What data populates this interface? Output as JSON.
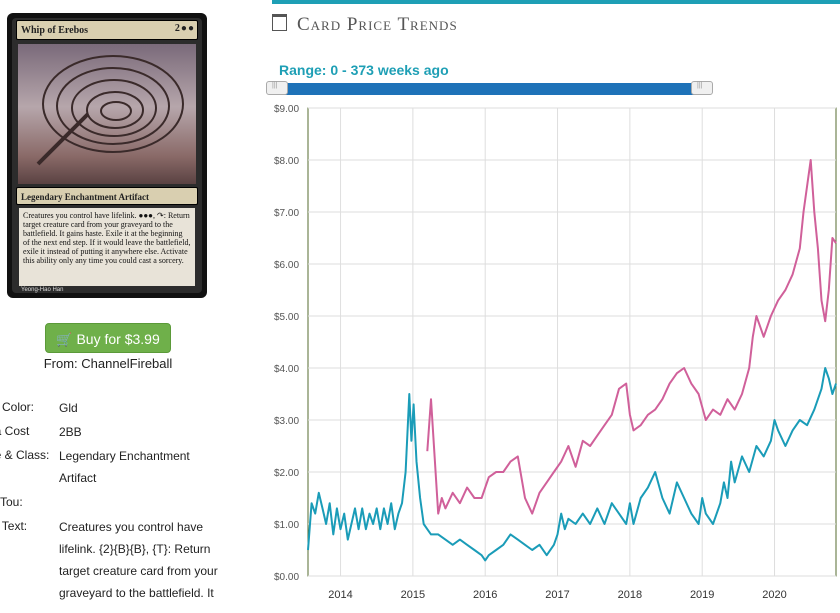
{
  "card": {
    "name": "Whip of Erebos",
    "mana": "2●●",
    "type_line": "Legendary Enchantment Artifact",
    "rules_text": "Creatures you control have lifelink. ●●●, ↷: Return target creature card from your graveyard to the battlefield. It gains haste. Exile it at the beginning of the next end step. If it would leave the battlefield, exile it instead of putting it anywhere else. Activate this ability only any time you could cast a sorcery.",
    "artist": "Yeong-Hao Han"
  },
  "buy": {
    "label": "Buy for $3.99",
    "from": "From: ChannelFireball",
    "icon": "shopping-cart-icon",
    "color": "#6fb04a"
  },
  "details": [
    {
      "label": "rd Color:",
      "value": "Gld"
    },
    {
      "label": "na Cost",
      "value": "2BB"
    },
    {
      "label": "pe & Class:",
      "value": "Legendary Enchantment Artifact"
    },
    {
      "label": "w/Tou:",
      "value": ""
    },
    {
      "label": "rd Text:",
      "value": "Creatures you control have lifelink. {2}{B}{B}, {T}: Return target creature card from your graveyard to the battlefield. It"
    }
  ],
  "trends": {
    "title": "Card Price Trends",
    "icon": "calendar-icon",
    "range_label": "Range: 0 - 373 weeks ago",
    "accent": "#1e9fb5"
  },
  "chart_data": {
    "type": "line",
    "ylim": [
      0,
      9
    ],
    "xlim": [
      2013.6,
      2020.9
    ],
    "yticks": [
      "$0.00",
      "$1.00",
      "$2.00",
      "$3.00",
      "$4.00",
      "$5.00",
      "$6.00",
      "$7.00",
      "$8.00",
      "$9.00"
    ],
    "xticks": [
      "2014",
      "2015",
      "2016",
      "2017",
      "2018",
      "2019",
      "2020"
    ],
    "grid": true,
    "series": [
      {
        "color": "#1a9cb8",
        "points": [
          [
            2013.6,
            0.5
          ],
          [
            2013.65,
            1.4
          ],
          [
            2013.7,
            1.2
          ],
          [
            2013.75,
            1.6
          ],
          [
            2013.8,
            1.3
          ],
          [
            2013.85,
            1.0
          ],
          [
            2013.9,
            1.4
          ],
          [
            2013.95,
            0.8
          ],
          [
            2014.0,
            1.3
          ],
          [
            2014.05,
            0.9
          ],
          [
            2014.1,
            1.2
          ],
          [
            2014.15,
            0.7
          ],
          [
            2014.2,
            1.0
          ],
          [
            2014.25,
            1.3
          ],
          [
            2014.3,
            0.9
          ],
          [
            2014.35,
            1.3
          ],
          [
            2014.4,
            0.9
          ],
          [
            2014.45,
            1.2
          ],
          [
            2014.5,
            1.0
          ],
          [
            2014.55,
            1.3
          ],
          [
            2014.6,
            0.9
          ],
          [
            2014.65,
            1.3
          ],
          [
            2014.7,
            1.0
          ],
          [
            2014.75,
            1.4
          ],
          [
            2014.8,
            0.9
          ],
          [
            2014.85,
            1.2
          ],
          [
            2014.9,
            1.4
          ],
          [
            2014.95,
            2.0
          ],
          [
            2015.0,
            3.5
          ],
          [
            2015.03,
            2.6
          ],
          [
            2015.06,
            3.3
          ],
          [
            2015.1,
            2.2
          ],
          [
            2015.15,
            1.5
          ],
          [
            2015.2,
            1.0
          ],
          [
            2015.25,
            0.9
          ],
          [
            2015.3,
            0.8
          ],
          [
            2015.4,
            0.8
          ],
          [
            2015.5,
            0.7
          ],
          [
            2015.6,
            0.6
          ],
          [
            2015.7,
            0.7
          ],
          [
            2015.8,
            0.6
          ],
          [
            2015.9,
            0.5
          ],
          [
            2016.0,
            0.4
          ],
          [
            2016.05,
            0.3
          ],
          [
            2016.1,
            0.4
          ],
          [
            2016.2,
            0.5
          ],
          [
            2016.3,
            0.6
          ],
          [
            2016.4,
            0.8
          ],
          [
            2016.5,
            0.7
          ],
          [
            2016.6,
            0.6
          ],
          [
            2016.7,
            0.5
          ],
          [
            2016.8,
            0.6
          ],
          [
            2016.9,
            0.4
          ],
          [
            2017.0,
            0.6
          ],
          [
            2017.05,
            0.8
          ],
          [
            2017.1,
            1.2
          ],
          [
            2017.15,
            0.9
          ],
          [
            2017.2,
            1.1
          ],
          [
            2017.3,
            1.0
          ],
          [
            2017.4,
            1.2
          ],
          [
            2017.5,
            1.0
          ],
          [
            2017.6,
            1.3
          ],
          [
            2017.7,
            1.0
          ],
          [
            2017.8,
            1.4
          ],
          [
            2017.9,
            1.2
          ],
          [
            2018.0,
            1.0
          ],
          [
            2018.05,
            1.4
          ],
          [
            2018.1,
            1.0
          ],
          [
            2018.2,
            1.5
          ],
          [
            2018.3,
            1.7
          ],
          [
            2018.4,
            2.0
          ],
          [
            2018.5,
            1.5
          ],
          [
            2018.6,
            1.2
          ],
          [
            2018.7,
            1.8
          ],
          [
            2018.8,
            1.5
          ],
          [
            2018.9,
            1.2
          ],
          [
            2019.0,
            1.0
          ],
          [
            2019.05,
            1.5
          ],
          [
            2019.1,
            1.2
          ],
          [
            2019.2,
            1.0
          ],
          [
            2019.3,
            1.4
          ],
          [
            2019.35,
            1.8
          ],
          [
            2019.4,
            1.5
          ],
          [
            2019.45,
            2.2
          ],
          [
            2019.5,
            1.8
          ],
          [
            2019.6,
            2.3
          ],
          [
            2019.7,
            2.0
          ],
          [
            2019.8,
            2.5
          ],
          [
            2019.9,
            2.3
          ],
          [
            2020.0,
            2.6
          ],
          [
            2020.05,
            3.0
          ],
          [
            2020.1,
            2.8
          ],
          [
            2020.2,
            2.5
          ],
          [
            2020.3,
            2.8
          ],
          [
            2020.4,
            3.0
          ],
          [
            2020.5,
            2.9
          ],
          [
            2020.6,
            3.2
          ],
          [
            2020.7,
            3.6
          ],
          [
            2020.75,
            4.0
          ],
          [
            2020.8,
            3.8
          ],
          [
            2020.85,
            3.5
          ],
          [
            2020.9,
            3.7
          ]
        ]
      },
      {
        "color": "#d0609a",
        "points": [
          [
            2015.25,
            2.4
          ],
          [
            2015.3,
            3.4
          ],
          [
            2015.35,
            2.3
          ],
          [
            2015.4,
            1.2
          ],
          [
            2015.45,
            1.5
          ],
          [
            2015.5,
            1.3
          ],
          [
            2015.6,
            1.6
          ],
          [
            2015.7,
            1.4
          ],
          [
            2015.8,
            1.7
          ],
          [
            2015.9,
            1.5
          ],
          [
            2016.0,
            1.5
          ],
          [
            2016.1,
            1.9
          ],
          [
            2016.2,
            2.0
          ],
          [
            2016.3,
            2.0
          ],
          [
            2016.4,
            2.2
          ],
          [
            2016.5,
            2.3
          ],
          [
            2016.6,
            1.5
          ],
          [
            2016.7,
            1.2
          ],
          [
            2016.8,
            1.6
          ],
          [
            2016.9,
            1.8
          ],
          [
            2017.0,
            2.0
          ],
          [
            2017.1,
            2.2
          ],
          [
            2017.2,
            2.5
          ],
          [
            2017.3,
            2.1
          ],
          [
            2017.4,
            2.6
          ],
          [
            2017.5,
            2.5
          ],
          [
            2017.6,
            2.7
          ],
          [
            2017.7,
            2.9
          ],
          [
            2017.8,
            3.1
          ],
          [
            2017.9,
            3.6
          ],
          [
            2018.0,
            3.7
          ],
          [
            2018.05,
            3.1
          ],
          [
            2018.1,
            2.8
          ],
          [
            2018.2,
            2.9
          ],
          [
            2018.3,
            3.1
          ],
          [
            2018.4,
            3.2
          ],
          [
            2018.5,
            3.4
          ],
          [
            2018.6,
            3.7
          ],
          [
            2018.7,
            3.9
          ],
          [
            2018.8,
            4.0
          ],
          [
            2018.9,
            3.7
          ],
          [
            2019.0,
            3.5
          ],
          [
            2019.1,
            3.0
          ],
          [
            2019.2,
            3.2
          ],
          [
            2019.3,
            3.1
          ],
          [
            2019.4,
            3.4
          ],
          [
            2019.5,
            3.2
          ],
          [
            2019.6,
            3.5
          ],
          [
            2019.7,
            4.0
          ],
          [
            2019.75,
            4.6
          ],
          [
            2019.8,
            5.0
          ],
          [
            2019.85,
            4.8
          ],
          [
            2019.9,
            4.6
          ],
          [
            2020.0,
            5.0
          ],
          [
            2020.1,
            5.3
          ],
          [
            2020.2,
            5.5
          ],
          [
            2020.3,
            5.8
          ],
          [
            2020.4,
            6.3
          ],
          [
            2020.45,
            7.0
          ],
          [
            2020.5,
            7.5
          ],
          [
            2020.55,
            8.0
          ],
          [
            2020.6,
            7.0
          ],
          [
            2020.65,
            6.3
          ],
          [
            2020.7,
            5.3
          ],
          [
            2020.75,
            4.9
          ],
          [
            2020.8,
            5.5
          ],
          [
            2020.85,
            6.5
          ],
          [
            2020.9,
            6.4
          ]
        ]
      }
    ]
  }
}
